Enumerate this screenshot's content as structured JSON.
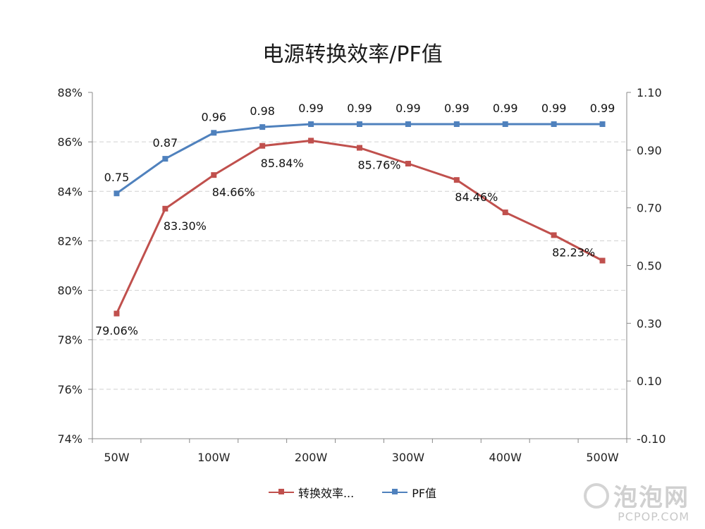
{
  "chart_data": {
    "type": "line",
    "title": "电源转换效率/PF值",
    "categories": [
      "50W",
      "",
      "100W",
      "",
      "200W",
      "",
      "300W",
      "",
      "400W",
      "",
      "500W"
    ],
    "y_left": {
      "ticks": [
        "88%",
        "86%",
        "84%",
        "82%",
        "80%",
        "78%",
        "76%",
        "74%"
      ],
      "ylim": [
        74,
        88
      ]
    },
    "y_right": {
      "ticks": [
        "1.10",
        "0.90",
        "0.70",
        "0.50",
        "0.30",
        "0.10",
        "-0.10"
      ],
      "ylim": [
        -0.1,
        1.1
      ]
    },
    "series": [
      {
        "name": "转换效率...",
        "axis": "left",
        "color": "#c0504d",
        "values": [
          79.06,
          83.3,
          84.66,
          85.84,
          86.05,
          85.76,
          85.12,
          84.46,
          83.15,
          82.23,
          81.2
        ],
        "labels": [
          "79.06%",
          "83.30%",
          "84.66%",
          "85.84%",
          "",
          "85.76%",
          "",
          "84.46%",
          "",
          "82.23%",
          ""
        ]
      },
      {
        "name": "PF值",
        "axis": "right",
        "color": "#4f81bd",
        "values": [
          0.75,
          0.87,
          0.96,
          0.98,
          0.99,
          0.99,
          0.99,
          0.99,
          0.99,
          0.99,
          0.99
        ],
        "labels": [
          "0.75",
          "0.87",
          "0.96",
          "0.98",
          "0.99",
          "0.99",
          "0.99",
          "0.99",
          "0.99",
          "0.99",
          "0.99"
        ]
      }
    ],
    "grid": true,
    "legend_position": "bottom"
  },
  "legend": {
    "efficiency_label": "转换效率...",
    "pf_label": "PF值"
  },
  "watermark": {
    "cn": "泡泡网",
    "en": "PCPOP.COM"
  }
}
